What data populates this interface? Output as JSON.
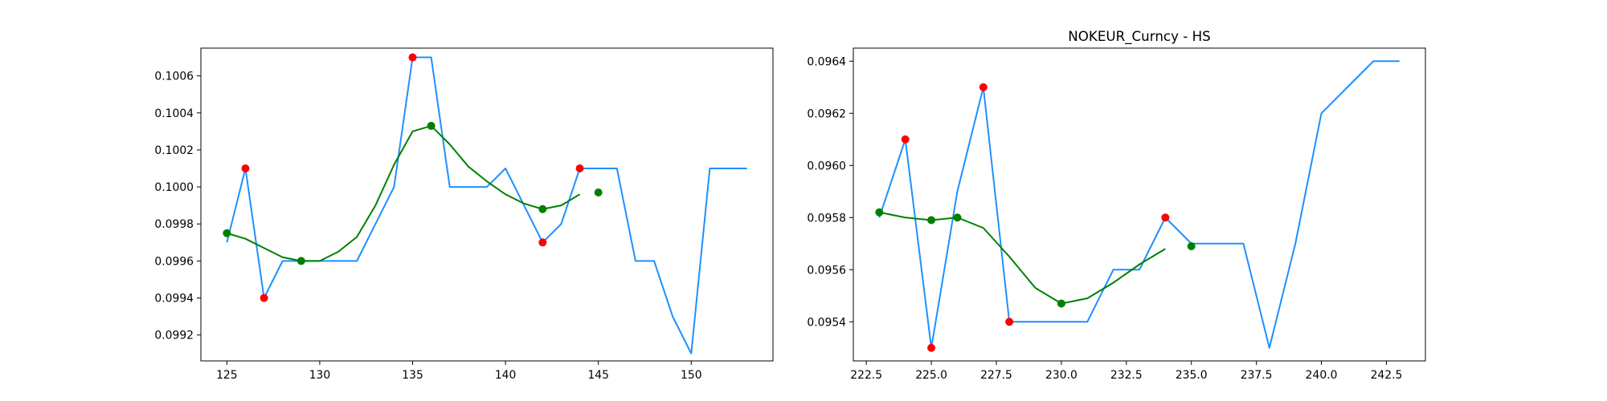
{
  "chart_data": [
    {
      "type": "line",
      "title": "",
      "xlabel": "",
      "ylabel": "",
      "xlim": [
        123.6,
        154.4
      ],
      "ylim": [
        0.09906,
        0.10075
      ],
      "xticks": [
        125,
        130,
        135,
        140,
        145,
        150
      ],
      "xtick_labels": [
        "125",
        "130",
        "135",
        "140",
        "145",
        "150"
      ],
      "yticks": [
        0.0992,
        0.0994,
        0.0996,
        0.0998,
        0.1,
        0.1002,
        0.1004,
        0.1006
      ],
      "ytick_labels": [
        "0.0992",
        "0.0994",
        "0.0996",
        "0.0998",
        "0.1000",
        "0.1002",
        "0.1004",
        "0.1006"
      ],
      "grid": false,
      "series": [
        {
          "kind": "line",
          "color": "#1e90ff",
          "points": [
            [
              125,
              0.0997
            ],
            [
              126,
              0.1001
            ],
            [
              127,
              0.0994
            ],
            [
              128,
              0.0996
            ],
            [
              129,
              0.0996
            ],
            [
              130,
              0.0996
            ],
            [
              131,
              0.0996
            ],
            [
              132,
              0.0996
            ],
            [
              133,
              0.0998
            ],
            [
              134,
              0.1
            ],
            [
              135,
              0.1007
            ],
            [
              136,
              0.1007
            ],
            [
              137,
              0.1
            ],
            [
              138,
              0.1
            ],
            [
              139,
              0.1
            ],
            [
              140,
              0.1001
            ],
            [
              141,
              0.0999
            ],
            [
              142,
              0.0997
            ],
            [
              143,
              0.0998
            ],
            [
              144,
              0.1001
            ],
            [
              145,
              0.1001
            ],
            [
              146,
              0.1001
            ],
            [
              147,
              0.0996
            ],
            [
              148,
              0.0996
            ],
            [
              149,
              0.0993
            ],
            [
              150,
              0.0991
            ],
            [
              151,
              0.1001
            ],
            [
              152,
              0.1001
            ],
            [
              153,
              0.1001
            ]
          ]
        },
        {
          "kind": "line",
          "color": "#008000",
          "points": [
            [
              125,
              0.09975
            ],
            [
              126,
              0.09972
            ],
            [
              127,
              0.09967
            ],
            [
              128,
              0.09962
            ],
            [
              129,
              0.0996
            ],
            [
              130,
              0.0996
            ],
            [
              131,
              0.09965
            ],
            [
              132,
              0.09973
            ],
            [
              133,
              0.0999
            ],
            [
              134,
              0.10012
            ],
            [
              135,
              0.1003
            ],
            [
              136,
              0.10033
            ],
            [
              137,
              0.10023
            ],
            [
              138,
              0.10011
            ],
            [
              139,
              0.10003
            ],
            [
              140,
              0.09996
            ],
            [
              141,
              0.09991
            ],
            [
              142,
              0.09988
            ],
            [
              143,
              0.0999
            ],
            [
              144,
              0.09996
            ]
          ]
        },
        {
          "kind": "scatter",
          "color": "#ff0000",
          "points": [
            [
              126,
              0.1001
            ],
            [
              127,
              0.0994
            ],
            [
              135,
              0.1007
            ],
            [
              142,
              0.0997
            ],
            [
              144,
              0.1001
            ]
          ]
        },
        {
          "kind": "scatter",
          "color": "#008000",
          "points": [
            [
              125,
              0.09975
            ],
            [
              129,
              0.0996
            ],
            [
              136,
              0.10033
            ],
            [
              142,
              0.09988
            ],
            [
              145,
              0.09997
            ]
          ]
        }
      ]
    },
    {
      "type": "line",
      "title": "NOKEUR_Curncy - HS",
      "xlabel": "",
      "ylabel": "",
      "xlim": [
        222.0,
        244.0
      ],
      "ylim": [
        0.09525,
        0.09645
      ],
      "xticks": [
        222.5,
        225.0,
        227.5,
        230.0,
        232.5,
        235.0,
        237.5,
        240.0,
        242.5
      ],
      "xtick_labels": [
        "222.5",
        "225.0",
        "227.5",
        "230.0",
        "232.5",
        "235.0",
        "237.5",
        "240.0",
        "242.5"
      ],
      "yticks": [
        0.0954,
        0.0956,
        0.0958,
        0.096,
        0.0962,
        0.0964
      ],
      "ytick_labels": [
        "0.0954",
        "0.0956",
        "0.0958",
        "0.0960",
        "0.0962",
        "0.0964"
      ],
      "grid": false,
      "series": [
        {
          "kind": "line",
          "color": "#1e90ff",
          "points": [
            [
              223,
              0.0958
            ],
            [
              224,
              0.0961
            ],
            [
              225,
              0.0953
            ],
            [
              226,
              0.0959
            ],
            [
              227,
              0.0963
            ],
            [
              228,
              0.0954
            ],
            [
              229,
              0.0954
            ],
            [
              230,
              0.0954
            ],
            [
              231,
              0.0954
            ],
            [
              232,
              0.0956
            ],
            [
              233,
              0.0956
            ],
            [
              234,
              0.0958
            ],
            [
              235,
              0.0957
            ],
            [
              236,
              0.0957
            ],
            [
              237,
              0.0957
            ],
            [
              238,
              0.0953
            ],
            [
              239,
              0.0957
            ],
            [
              240,
              0.0962
            ],
            [
              241,
              0.0963
            ],
            [
              242,
              0.0964
            ],
            [
              243,
              0.0964
            ]
          ]
        },
        {
          "kind": "line",
          "color": "#008000",
          "points": [
            [
              223,
              0.09582
            ],
            [
              224,
              0.0958
            ],
            [
              225,
              0.09579
            ],
            [
              226,
              0.0958
            ],
            [
              227,
              0.09576
            ],
            [
              228,
              0.09565
            ],
            [
              229,
              0.09553
            ],
            [
              230,
              0.09547
            ],
            [
              231,
              0.09549
            ],
            [
              232,
              0.09555
            ],
            [
              233,
              0.09562
            ],
            [
              234,
              0.09568
            ]
          ]
        },
        {
          "kind": "scatter",
          "color": "#ff0000",
          "points": [
            [
              224,
              0.0961
            ],
            [
              225,
              0.0953
            ],
            [
              227,
              0.0963
            ],
            [
              228,
              0.0954
            ],
            [
              234,
              0.0958
            ]
          ]
        },
        {
          "kind": "scatter",
          "color": "#008000",
          "points": [
            [
              223,
              0.09582
            ],
            [
              225,
              0.09579
            ],
            [
              226,
              0.0958
            ],
            [
              230,
              0.09547
            ],
            [
              235,
              0.09569
            ]
          ]
        }
      ]
    }
  ]
}
